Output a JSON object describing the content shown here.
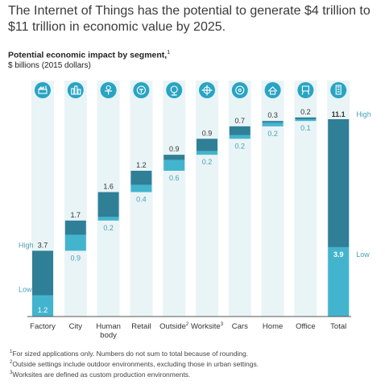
{
  "headline": "The Internet of Things has the potential to generate $4 trillion to $11 trillion in economic value by 2025.",
  "colors": {
    "column_bg": "#e9f4f7",
    "icon": "#29a4c2",
    "bar_high": "#2f7f96",
    "bar_low": "#43b4ce",
    "label_high": "#3a3a3a",
    "label_low": "#4aa0b8"
  },
  "chart_data": {
    "type": "bar",
    "subtitle": "Potential economic impact by segment,",
    "subtitle_mark": "1",
    "units": "$ billions (2015 dollars)",
    "categories": [
      "Factory",
      "City",
      "Human body",
      "Retail",
      "Outside",
      "Worksite",
      "Cars",
      "Home",
      "Office",
      "Total"
    ],
    "category_marks": [
      "",
      "",
      "",
      "",
      "2",
      "3",
      "",
      "",
      "",
      ""
    ],
    "icons": [
      "factory-icon",
      "city-icon",
      "human-body-icon",
      "retail-icon",
      "outside-icon",
      "worksite-icon",
      "car-icon",
      "home-icon",
      "office-icon",
      "total-icon"
    ],
    "series": [
      {
        "name": "Low",
        "values": [
          1.2,
          0.9,
          0.2,
          0.4,
          0.6,
          0.2,
          0.2,
          0.2,
          0.1,
          3.9
        ]
      },
      {
        "name": "High",
        "values": [
          3.7,
          1.7,
          1.6,
          1.2,
          0.9,
          0.9,
          0.7,
          0.3,
          0.2,
          11.1
        ]
      }
    ],
    "high_label_text": "High",
    "low_label_text": "Low",
    "ylim": [
      0,
      11.1
    ]
  },
  "footnotes": [
    {
      "mark": "1",
      "text": "For sized applications only. Numbers do not sum to total because of rounding."
    },
    {
      "mark": "2",
      "text": "Outside settings include outdoor environments, excluding those in urban settings."
    },
    {
      "mark": "3",
      "text": "Worksites are defined as custom production environments."
    }
  ]
}
